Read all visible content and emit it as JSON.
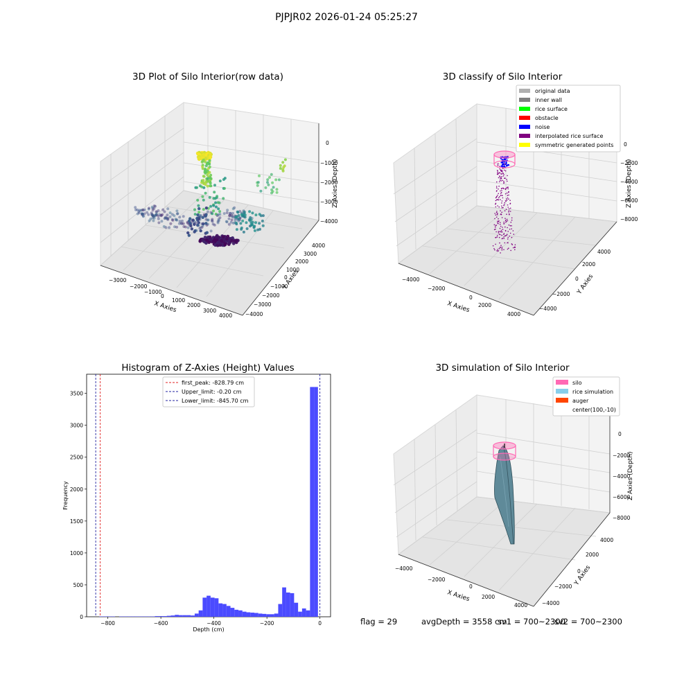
{
  "suptitle": "PJPJR02 2026-01-24 05:25:27",
  "colors": {
    "hist_bar": "#4b4bff",
    "first_peak_line": "#e02020",
    "limit_line": "#2020a0",
    "silo": "#ff69b4",
    "rice_simulation": "#87ceeb",
    "auger": "#ff4500",
    "inner_wall": "#808080",
    "original_data": "#b0b0b0",
    "rice_surface": "#00ff00",
    "obstacle": "#ff0000",
    "noise": "#0000ff",
    "interpolated": "#800080",
    "symmetric": "#ffff00"
  },
  "chart_data": [
    {
      "type": "scatter",
      "title": "3D Plot of Silo Interior(row data)",
      "xlabel": "X Axies",
      "ylabel": "Y Axies",
      "zlabel": "Z Axies (Depth)",
      "x_ticks": [
        "−3000",
        "−2000",
        "−1000",
        "0",
        "1000",
        "2000",
        "3000",
        "4000"
      ],
      "y_ticks": [
        "−4000",
        "−3000",
        "−2000",
        "−1000",
        "0",
        "1000",
        "2000",
        "3000",
        "4000"
      ],
      "z_ticks": [
        "0",
        "−1000",
        "−2000",
        "−3000",
        "−4000"
      ]
    },
    {
      "type": "scatter",
      "title": "3D classify of Silo Interior",
      "xlabel": "X Axies",
      "ylabel": "Y Axies",
      "zlabel": "Z Axies (Depth)",
      "x_ticks": [
        "−4000",
        "−2000",
        "0",
        "2000",
        "4000"
      ],
      "y_ticks": [
        "−4000",
        "−2000",
        "0",
        "2000",
        "4000"
      ],
      "z_ticks": [
        "0",
        "−2000",
        "−4000",
        "−6000",
        "−8000"
      ],
      "legend": [
        "original data",
        "inner wall",
        "rice surface",
        "obstacle",
        "noise",
        "interpolated rice surface",
        "symmetric generated points"
      ],
      "legend_position": "top-right"
    },
    {
      "type": "bar",
      "title": "Histogram of Z-Axies (Height) Values",
      "xlabel": "Depth (cm)",
      "ylabel": "Frequency",
      "xlim": [
        -880,
        40
      ],
      "ylim": [
        0,
        3800
      ],
      "x_ticks": [
        -800,
        -600,
        -400,
        -200,
        0
      ],
      "x_tick_labels": [
        "−800",
        "−600",
        "−400",
        "−200",
        "0"
      ],
      "y_ticks": [
        0,
        500,
        1000,
        1500,
        2000,
        2500,
        3000,
        3500
      ],
      "bin_width": 15,
      "bins": [
        {
          "x": -825,
          "y": 5
        },
        {
          "x": -810,
          "y": 5
        },
        {
          "x": -795,
          "y": 5
        },
        {
          "x": -780,
          "y": 5
        },
        {
          "x": -750,
          "y": 5
        },
        {
          "x": -735,
          "y": 5
        },
        {
          "x": -720,
          "y": 5
        },
        {
          "x": -705,
          "y": 5
        },
        {
          "x": -690,
          "y": 5
        },
        {
          "x": -675,
          "y": 5
        },
        {
          "x": -660,
          "y": 5
        },
        {
          "x": -645,
          "y": 5
        },
        {
          "x": -630,
          "y": 5
        },
        {
          "x": -615,
          "y": 10
        },
        {
          "x": -600,
          "y": 10
        },
        {
          "x": -585,
          "y": 10
        },
        {
          "x": -570,
          "y": 15
        },
        {
          "x": -555,
          "y": 20
        },
        {
          "x": -540,
          "y": 30
        },
        {
          "x": -525,
          "y": 25
        },
        {
          "x": -510,
          "y": 25
        },
        {
          "x": -495,
          "y": 25
        },
        {
          "x": -480,
          "y": 20
        },
        {
          "x": -465,
          "y": 50
        },
        {
          "x": -450,
          "y": 100
        },
        {
          "x": -435,
          "y": 300
        },
        {
          "x": -420,
          "y": 330
        },
        {
          "x": -405,
          "y": 300
        },
        {
          "x": -390,
          "y": 290
        },
        {
          "x": -375,
          "y": 210
        },
        {
          "x": -360,
          "y": 200
        },
        {
          "x": -345,
          "y": 170
        },
        {
          "x": -330,
          "y": 140
        },
        {
          "x": -315,
          "y": 110
        },
        {
          "x": -300,
          "y": 100
        },
        {
          "x": -285,
          "y": 80
        },
        {
          "x": -270,
          "y": 70
        },
        {
          "x": -255,
          "y": 65
        },
        {
          "x": -240,
          "y": 60
        },
        {
          "x": -225,
          "y": 50
        },
        {
          "x": -210,
          "y": 45
        },
        {
          "x": -195,
          "y": 40
        },
        {
          "x": -180,
          "y": 40
        },
        {
          "x": -165,
          "y": 50
        },
        {
          "x": -150,
          "y": 200
        },
        {
          "x": -135,
          "y": 460
        },
        {
          "x": -120,
          "y": 380
        },
        {
          "x": -105,
          "y": 370
        },
        {
          "x": -90,
          "y": 220
        },
        {
          "x": -75,
          "y": 80
        },
        {
          "x": -60,
          "y": 130
        },
        {
          "x": -45,
          "y": 100
        },
        {
          "x": -30,
          "y": 3600
        },
        {
          "x": -15,
          "y": 3600
        }
      ],
      "vlines": [
        {
          "x": -828.79,
          "style": "first_peak",
          "label": "first_peak: -828.79 cm"
        },
        {
          "x": -0.2,
          "style": "limit",
          "label": "Upper_limit: -0.20 cm"
        },
        {
          "x": -845.7,
          "style": "limit",
          "label": "Lower_limit: -845.70 cm"
        }
      ],
      "legend_position": "upper-center"
    },
    {
      "type": "surface",
      "title": "3D simulation of Silo Interior",
      "xlabel": "X Axies",
      "ylabel": "Y Axies",
      "zlabel": "Z Axies (Depth)",
      "x_ticks": [
        "−4000",
        "−2000",
        "0",
        "2000",
        "4000"
      ],
      "y_ticks": [
        "−4000",
        "−2000",
        "0",
        "2000",
        "4000"
      ],
      "z_ticks": [
        "0",
        "−2000",
        "−4000",
        "−6000",
        "−8000"
      ],
      "legend": [
        "silo",
        "rice simulation",
        "auger",
        "center(100,-10)"
      ],
      "legend_position": "top-right"
    }
  ],
  "stats": {
    "flag": "flag = 29",
    "avg": "avgDepth = 3558 cm",
    "sv1": "sv1 = 700~2300",
    "sv2": "sv2 = 700~2300"
  }
}
